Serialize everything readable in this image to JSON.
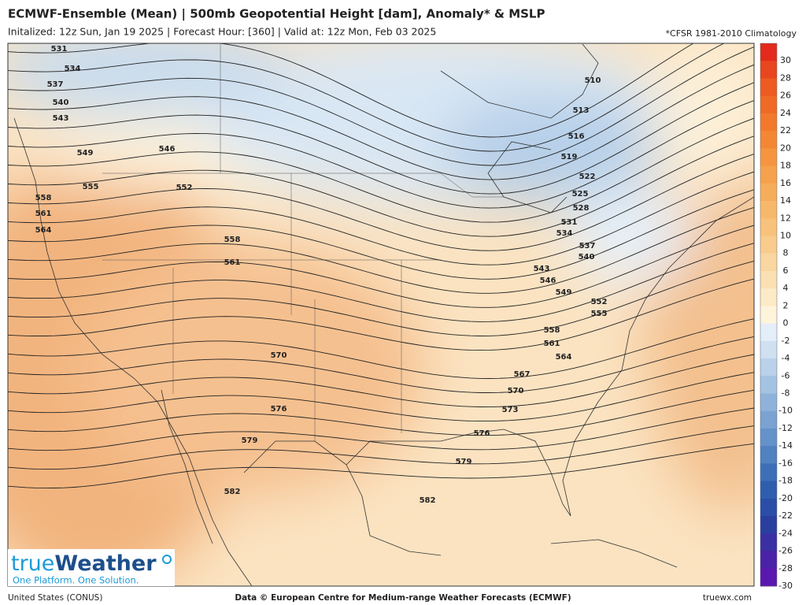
{
  "header": {
    "title": "ECMWF-Ensemble (Mean) | 500mb Geopotential Height [dam], Anomaly* & MSLP",
    "subtitle": "Initalized: 12z Sun, Jan 19 2025  |  Forecast Hour: [360]  |  Valid at: 12z Mon, Feb 03 2025",
    "climatology_note": "*CFSR 1981-2010 Climatology"
  },
  "colorbar": {
    "labels": [
      30,
      28,
      26,
      24,
      22,
      20,
      18,
      16,
      14,
      12,
      10,
      8,
      6,
      4,
      2,
      0,
      -2,
      -4,
      -6,
      -8,
      -10,
      -12,
      -14,
      -16,
      -18,
      -20,
      -22,
      -24,
      -26,
      -28,
      -30
    ],
    "colors": [
      "#e32a1c",
      "#e8461f",
      "#ed5a22",
      "#f06a25",
      "#f2792b",
      "#f48734",
      "#f5953f",
      "#f6a14c",
      "#f6ad5b",
      "#f7b86b",
      "#f8c27c",
      "#f9cc8e",
      "#fad6a0",
      "#fbe0b3",
      "#fdeac6",
      "#fef4dc",
      "#e4eef8",
      "#cfe0f1",
      "#b9d1ea",
      "#a4c2e2",
      "#8fb2da",
      "#7aa2d2",
      "#6592ca",
      "#5081c1",
      "#3c6fb8",
      "#2f5eae",
      "#2a4ea7",
      "#2a3ea0",
      "#3a2fa3",
      "#4a22a8",
      "#5a18b0"
    ]
  },
  "contour_labels": [
    "531",
    "534",
    "537",
    "540",
    "543",
    "549",
    "546",
    "555",
    "552",
    "558",
    "561",
    "564",
    "558",
    "561",
    "510",
    "513",
    "516",
    "519",
    "522",
    "525",
    "528",
    "531",
    "534",
    "537",
    "540",
    "543",
    "546",
    "549",
    "552",
    "555",
    "558",
    "561",
    "564",
    "567",
    "570",
    "573",
    "570",
    "576",
    "576",
    "579",
    "579",
    "582",
    "582"
  ],
  "logo": {
    "brand_prefix": "true",
    "brand_suffix": "Weather",
    "tagline": "One Platform. One Solution."
  },
  "footer": {
    "region": "United States (CONUS)",
    "credit": "Data © European Centre for Medium-range Weather Forecasts (ECMWF)",
    "site": "truewx.com"
  }
}
